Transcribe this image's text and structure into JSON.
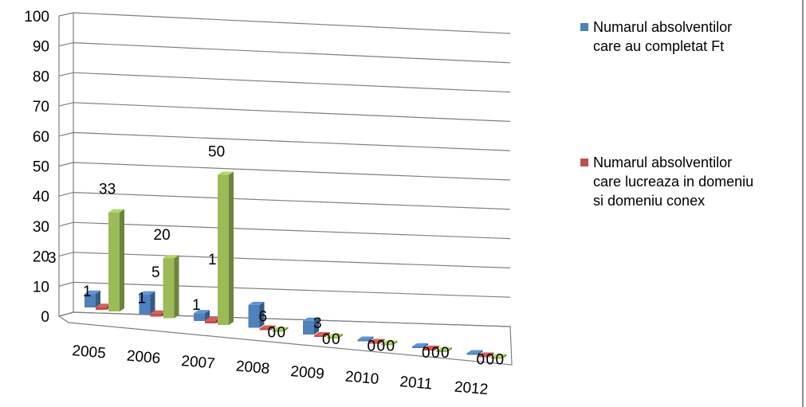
{
  "chart_data": {
    "type": "bar",
    "categories": [
      "2005",
      "2006",
      "2007",
      "2008",
      "2009",
      "2010",
      "2011",
      "2012"
    ],
    "series": [
      {
        "name": "Numarul absolventilor care au completat Ft",
        "color": "#4f81bd",
        "values": [
          3,
          5,
          1,
          6,
          3,
          0,
          0,
          0
        ]
      },
      {
        "name": "Numarul absolventilor care  lucreaza in domeniu si domeniu conex",
        "color": "#c0504d",
        "values": [
          1,
          1,
          1,
          0,
          0,
          0,
          0,
          0
        ]
      },
      {
        "name": "",
        "color": "#9bbb59",
        "values": [
          33,
          20,
          50,
          0,
          0,
          0,
          0,
          0
        ]
      }
    ],
    "data_labels": [
      [
        "3",
        "5",
        "1",
        "6",
        "3",
        "0",
        "0",
        "0"
      ],
      [
        "1",
        "1",
        "1",
        "0",
        "0",
        "0",
        "0",
        "0"
      ],
      [
        "33",
        "20",
        "50",
        "0",
        "0",
        "0",
        "0",
        "0"
      ]
    ],
    "y_ticks": [
      "0",
      "10",
      "20",
      "30",
      "40",
      "50",
      "60",
      "70",
      "80",
      "90",
      "100"
    ],
    "ylim": [
      0,
      100
    ],
    "grid": true,
    "legend_position": "right",
    "title": "",
    "xlabel": "",
    "ylabel": ""
  },
  "legend": {
    "items": [
      {
        "label_line1": "Numarul absolventilor",
        "label_line2": "care au completat Ft",
        "label_line3": "",
        "color": "#4f81bd"
      },
      {
        "label_line1": "Numarul absolventilor",
        "label_line2": "care  lucreaza in domeniu",
        "label_line3": "si domeniu conex",
        "color": "#c0504d"
      }
    ]
  }
}
